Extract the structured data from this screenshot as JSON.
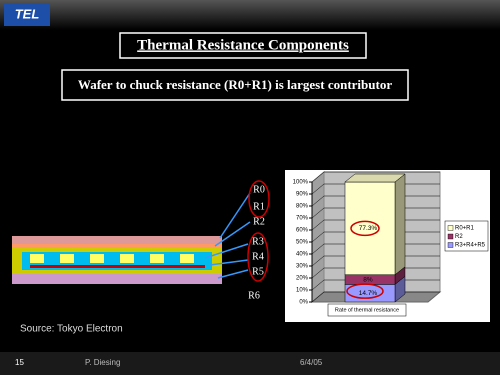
{
  "logo": "TEL",
  "title": "Thermal Resistance Components",
  "callout": "Wafer to chuck resistance (R0+R1) is largest contributor",
  "resistors": [
    "R0",
    "R1",
    "R2",
    "R3",
    "R4",
    "R5",
    "R6"
  ],
  "source": "Source: Tokyo Electron",
  "footer": {
    "page": "15",
    "author": "P. Diesing",
    "date": "6/4/05"
  },
  "chart_data": {
    "type": "stacked-bar",
    "categories": [
      "Rate of  thermal resistance"
    ],
    "series": [
      {
        "name": "R0+R1",
        "color": "#ffffcc",
        "values": [
          77.3
        ],
        "value_labels": [
          "77.3%"
        ]
      },
      {
        "name": "R2",
        "color": "#993366",
        "values": [
          8
        ],
        "value_labels": [
          "8%"
        ]
      },
      {
        "name": "R3+R4+R5",
        "color": "#9999ff",
        "values": [
          14.7
        ],
        "value_labels": [
          "14.7%"
        ]
      }
    ],
    "ylim": [
      0,
      100
    ],
    "yticks": [
      {
        "value": 0,
        "label": "0%"
      },
      {
        "value": 10,
        "label": "10%"
      },
      {
        "value": 20,
        "label": "20%"
      },
      {
        "value": 30,
        "label": "30%"
      },
      {
        "value": 40,
        "label": "40%"
      },
      {
        "value": 50,
        "label": "50%"
      },
      {
        "value": 60,
        "label": "60%"
      },
      {
        "value": 70,
        "label": "70%"
      },
      {
        "value": 80,
        "label": "80%"
      },
      {
        "value": 90,
        "label": "90%"
      },
      {
        "value": 100,
        "label": "100%"
      }
    ],
    "grid": true,
    "legend": "right"
  }
}
